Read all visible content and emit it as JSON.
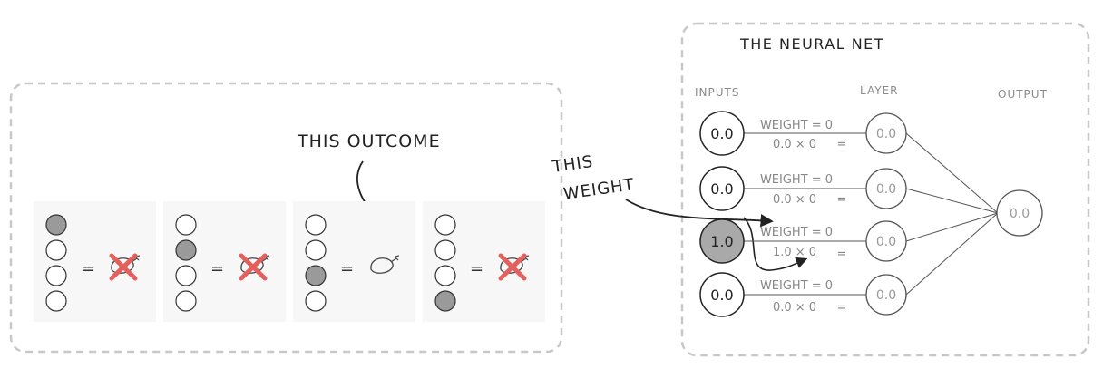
{
  "left_panel": {
    "annotation": "THIS OUTCOME",
    "equals_sign": "=",
    "cases": [
      {
        "active_input": 1,
        "outcome": "no-chicken"
      },
      {
        "active_input": 2,
        "outcome": "no-chicken"
      },
      {
        "active_input": 3,
        "outcome": "chicken"
      },
      {
        "active_input": 4,
        "outcome": "no-chicken"
      }
    ]
  },
  "weight_annotation": {
    "line1": "THIS",
    "line2": "WEIGHT"
  },
  "network": {
    "title": "THE NEURAL NET",
    "inputs_header": "INPUTS",
    "layer_header": "LAYER",
    "output_header": "OUTPUT",
    "inputs": [
      {
        "value": "0.0",
        "weight_label": "WEIGHT = 0",
        "product": "0.0 × 0",
        "equals": "=",
        "layer_value": "0.0",
        "active": false
      },
      {
        "value": "0.0",
        "weight_label": "WEIGHT = 0",
        "product": "0.0 × 0",
        "equals": "=",
        "layer_value": "0.0",
        "active": false
      },
      {
        "value": "1.0",
        "weight_label": "WEIGHT = 0",
        "product": "1.0 × 0",
        "equals": "=",
        "layer_value": "0.0",
        "active": true
      },
      {
        "value": "0.0",
        "weight_label": "WEIGHT = 0",
        "product": "0.0 × 0",
        "equals": "=",
        "layer_value": "0.0",
        "active": false
      }
    ],
    "output_value": "0.0"
  },
  "colors": {
    "frame": "#c8c8c8",
    "case_bg": "#f7f7f7",
    "active_fill": "#9a9a9a",
    "cross": "#e4605c",
    "ink": "#222222",
    "light_ink": "#8a8a8a"
  }
}
